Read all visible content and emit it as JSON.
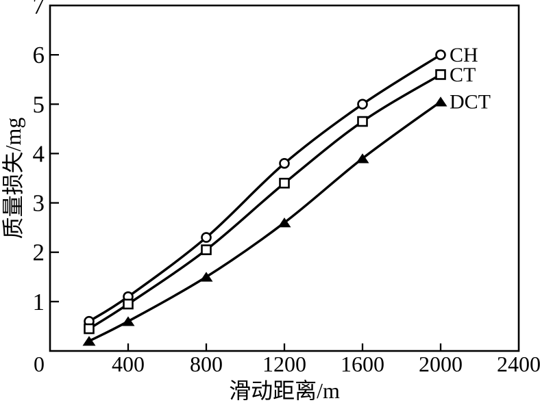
{
  "figure": {
    "background": "#ffffff",
    "ink": "#000000"
  },
  "chart_data": {
    "type": "line",
    "title": "",
    "x_axis": {
      "label": "滑动距离/m",
      "range": [
        0,
        2400
      ],
      "ticks": [
        0,
        400,
        800,
        1200,
        1600,
        2000,
        2400
      ]
    },
    "y_axis": {
      "label": "质量损失/mg",
      "range": [
        0,
        7
      ],
      "ticks": [
        1,
        2,
        3,
        4,
        5,
        6,
        7
      ],
      "origin_label": "0"
    },
    "grid": false,
    "legend_position": "labels-at-line-ends",
    "x": [
      200,
      400,
      800,
      1200,
      1600,
      2000
    ],
    "series": [
      {
        "name": "CH",
        "marker": "open-circle",
        "color": "#000000",
        "values": [
          0.6,
          1.1,
          2.3,
          3.8,
          5.0,
          6.0
        ]
      },
      {
        "name": "CT",
        "marker": "open-square",
        "color": "#000000",
        "values": [
          0.45,
          0.95,
          2.05,
          3.4,
          4.65,
          5.6
        ]
      },
      {
        "name": "DCT",
        "marker": "filled-triangle",
        "color": "#000000",
        "values": [
          0.2,
          0.6,
          1.5,
          2.6,
          3.9,
          5.05
        ]
      }
    ]
  }
}
